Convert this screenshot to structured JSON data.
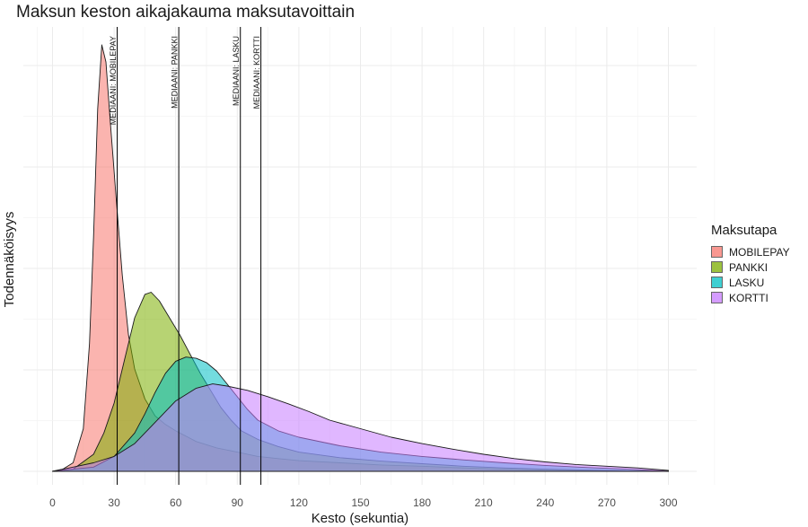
{
  "chart_data": {
    "type": "area",
    "title": "Maksun keston aikajakauma maksutavoittain",
    "xlabel": "Kesto (sekuntia)",
    "ylabel": "Todennäköisyys",
    "xlim": [
      -5,
      310
    ],
    "x_ticks": [
      0,
      30,
      60,
      90,
      120,
      150,
      180,
      210,
      240,
      270,
      300
    ],
    "y_range_relative": [
      0,
      1.05
    ],
    "grid": true,
    "legend": {
      "title": "Maksutapa",
      "placement": "right"
    },
    "series": [
      {
        "name": "MOBILEPAY",
        "color": "#F8766D",
        "points": [
          [
            0,
            0
          ],
          [
            5,
            0.005
          ],
          [
            10,
            0.02
          ],
          [
            15,
            0.1
          ],
          [
            18,
            0.3
          ],
          [
            20,
            0.55
          ],
          [
            22,
            0.85
          ],
          [
            24,
            1.0
          ],
          [
            26,
            0.96
          ],
          [
            28,
            0.83
          ],
          [
            31,
            0.64
          ],
          [
            34,
            0.46
          ],
          [
            37,
            0.32
          ],
          [
            40,
            0.24
          ],
          [
            45,
            0.17
          ],
          [
            50,
            0.13
          ],
          [
            55,
            0.11
          ],
          [
            60,
            0.095
          ],
          [
            70,
            0.07
          ],
          [
            80,
            0.055
          ],
          [
            90,
            0.045
          ],
          [
            100,
            0.035
          ],
          [
            110,
            0.03
          ],
          [
            120,
            0.025
          ],
          [
            140,
            0.02
          ],
          [
            160,
            0.015
          ],
          [
            180,
            0.012
          ],
          [
            200,
            0.008
          ],
          [
            220,
            0.005
          ],
          [
            240,
            0.003
          ],
          [
            260,
            0.002
          ],
          [
            280,
            0.001
          ],
          [
            300,
            0
          ]
        ]
      },
      {
        "name": "PANKKI",
        "color": "#7CAE00",
        "points": [
          [
            0,
            0
          ],
          [
            10,
            0.005
          ],
          [
            20,
            0.04
          ],
          [
            25,
            0.09
          ],
          [
            30,
            0.16
          ],
          [
            35,
            0.26
          ],
          [
            40,
            0.36
          ],
          [
            45,
            0.415
          ],
          [
            48,
            0.42
          ],
          [
            52,
            0.4
          ],
          [
            57,
            0.36
          ],
          [
            62,
            0.32
          ],
          [
            67,
            0.275
          ],
          [
            72,
            0.23
          ],
          [
            77,
            0.19
          ],
          [
            82,
            0.15
          ],
          [
            87,
            0.12
          ],
          [
            92,
            0.095
          ],
          [
            100,
            0.075
          ],
          [
            110,
            0.058
          ],
          [
            120,
            0.045
          ],
          [
            140,
            0.032
          ],
          [
            160,
            0.024
          ],
          [
            180,
            0.018
          ],
          [
            200,
            0.012
          ],
          [
            220,
            0.008
          ],
          [
            240,
            0.005
          ],
          [
            260,
            0.003
          ],
          [
            280,
            0.001
          ],
          [
            300,
            0
          ]
        ]
      },
      {
        "name": "LASKU",
        "color": "#00BFC4",
        "points": [
          [
            0,
            0
          ],
          [
            20,
            0.01
          ],
          [
            30,
            0.035
          ],
          [
            40,
            0.09
          ],
          [
            45,
            0.135
          ],
          [
            50,
            0.185
          ],
          [
            55,
            0.23
          ],
          [
            60,
            0.258
          ],
          [
            65,
            0.268
          ],
          [
            70,
            0.265
          ],
          [
            75,
            0.255
          ],
          [
            80,
            0.235
          ],
          [
            85,
            0.205
          ],
          [
            90,
            0.175
          ],
          [
            95,
            0.145
          ],
          [
            100,
            0.12
          ],
          [
            110,
            0.095
          ],
          [
            120,
            0.08
          ],
          [
            140,
            0.06
          ],
          [
            160,
            0.045
          ],
          [
            180,
            0.035
          ],
          [
            200,
            0.027
          ],
          [
            220,
            0.02
          ],
          [
            240,
            0.014
          ],
          [
            260,
            0.009
          ],
          [
            280,
            0.005
          ],
          [
            300,
            0
          ]
        ]
      },
      {
        "name": "KORTTI",
        "color": "#C77CFF",
        "points": [
          [
            0,
            0
          ],
          [
            10,
            0.01
          ],
          [
            20,
            0.02
          ],
          [
            30,
            0.035
          ],
          [
            40,
            0.065
          ],
          [
            50,
            0.115
          ],
          [
            60,
            0.165
          ],
          [
            70,
            0.195
          ],
          [
            78,
            0.205
          ],
          [
            85,
            0.2
          ],
          [
            95,
            0.19
          ],
          [
            105,
            0.175
          ],
          [
            115,
            0.158
          ],
          [
            125,
            0.14
          ],
          [
            135,
            0.12
          ],
          [
            150,
            0.1
          ],
          [
            165,
            0.08
          ],
          [
            180,
            0.065
          ],
          [
            195,
            0.052
          ],
          [
            210,
            0.04
          ],
          [
            225,
            0.03
          ],
          [
            240,
            0.022
          ],
          [
            255,
            0.016
          ],
          [
            270,
            0.012
          ],
          [
            285,
            0.008
          ],
          [
            300,
            0.002
          ]
        ]
      }
    ],
    "medians": [
      {
        "label": "MEDIAANI: MOBILEPAY",
        "x": 31.5
      },
      {
        "label": "MEDIAANI: PANKKI",
        "x": 61.5
      },
      {
        "label": "MEDIAANI: LASKU",
        "x": 91.5
      },
      {
        "label": "MEDIAANI: KORTTI",
        "x": 101.5
      }
    ]
  }
}
